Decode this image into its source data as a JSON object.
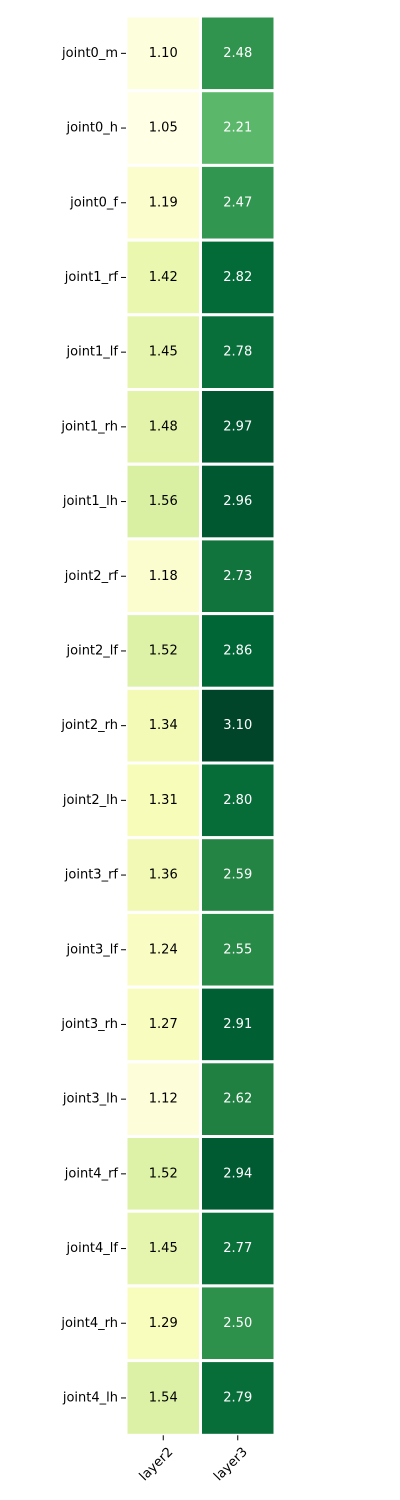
{
  "chart_data": {
    "type": "heatmap",
    "title": "",
    "xlabel": "",
    "ylabel": "",
    "columns": [
      "layer2",
      "layer3"
    ],
    "rows": [
      "joint0_m",
      "joint0_h",
      "joint0_f",
      "joint1_rf",
      "joint1_lf",
      "joint1_rh",
      "joint1_lh",
      "joint2_rf",
      "joint2_lf",
      "joint2_rh",
      "joint2_lh",
      "joint3_rf",
      "joint3_lf",
      "joint3_rh",
      "joint3_lh",
      "joint4_rf",
      "joint4_lf",
      "joint4_rh",
      "joint4_lh"
    ],
    "values": [
      [
        1.1,
        2.48
      ],
      [
        1.05,
        2.21
      ],
      [
        1.19,
        2.47
      ],
      [
        1.42,
        2.82
      ],
      [
        1.45,
        2.78
      ],
      [
        1.48,
        2.97
      ],
      [
        1.56,
        2.96
      ],
      [
        1.18,
        2.73
      ],
      [
        1.52,
        2.86
      ],
      [
        1.34,
        3.1
      ],
      [
        1.31,
        2.8
      ],
      [
        1.36,
        2.59
      ],
      [
        1.24,
        2.55
      ],
      [
        1.27,
        2.91
      ],
      [
        1.12,
        2.62
      ],
      [
        1.52,
        2.94
      ],
      [
        1.45,
        2.77
      ],
      [
        1.29,
        2.5
      ],
      [
        1.54,
        2.79
      ]
    ],
    "value_labels": [
      [
        "1.10",
        "2.48"
      ],
      [
        "1.05",
        "2.21"
      ],
      [
        "1.19",
        "2.47"
      ],
      [
        "1.42",
        "2.82"
      ],
      [
        "1.45",
        "2.78"
      ],
      [
        "1.48",
        "2.97"
      ],
      [
        "1.56",
        "2.96"
      ],
      [
        "1.18",
        "2.73"
      ],
      [
        "1.52",
        "2.86"
      ],
      [
        "1.34",
        "3.10"
      ],
      [
        "1.31",
        "2.80"
      ],
      [
        "1.36",
        "2.59"
      ],
      [
        "1.24",
        "2.55"
      ],
      [
        "1.27",
        "2.91"
      ],
      [
        "1.12",
        "2.62"
      ],
      [
        "1.52",
        "2.94"
      ],
      [
        "1.45",
        "2.77"
      ],
      [
        "1.29",
        "2.50"
      ],
      [
        "1.54",
        "2.79"
      ]
    ],
    "colormap": "YlGn",
    "vmin": 1.05,
    "vmax": 3.1,
    "colorbar": false,
    "grid": false
  }
}
